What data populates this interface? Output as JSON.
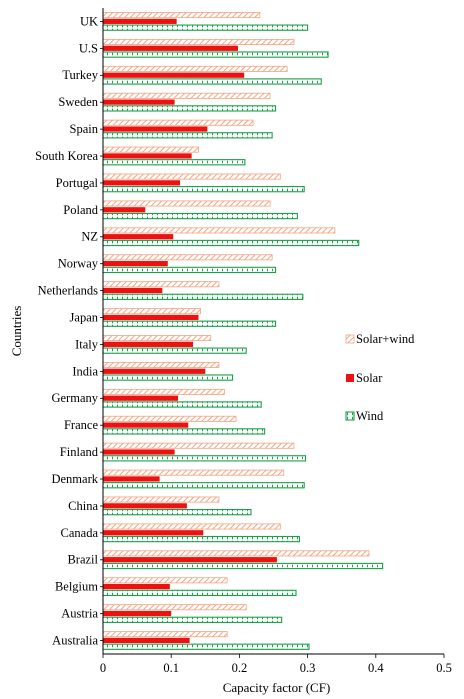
{
  "chart_data": {
    "type": "bar",
    "orientation": "horizontal",
    "xlabel": "Capacity factor (CF)",
    "ylabel": "Countries",
    "xlim": [
      0,
      0.5
    ],
    "xticks": [
      "0",
      "0.1",
      "0.2",
      "0.3",
      "0.4",
      "0.5"
    ],
    "grid": false,
    "legend_placement": "right",
    "categories": [
      "UK",
      "U.S",
      "Turkey",
      "Sweden",
      "Spain",
      "South Korea",
      "Portugal",
      "Poland",
      "NZ",
      "Norway",
      "Netherlands",
      "Japan",
      "Italy",
      "India",
      "Germany",
      "France",
      "Finland",
      "Denmark",
      "China",
      "Canada",
      "Brazil",
      "Belgium",
      "Austria",
      "Australia"
    ],
    "series": [
      {
        "name": "Solar+wind",
        "color": "#f4a582",
        "pattern": "diagonal-hatch",
        "values": [
          0.23,
          0.28,
          0.27,
          0.245,
          0.22,
          0.14,
          0.26,
          0.245,
          0.34,
          0.248,
          0.17,
          0.143,
          0.158,
          0.17,
          0.178,
          0.195,
          0.28,
          0.265,
          0.17,
          0.26,
          0.39,
          0.182,
          0.21,
          0.182
        ]
      },
      {
        "name": "Solar",
        "color": "#ee1111",
        "pattern": "solid",
        "values": [
          0.108,
          0.198,
          0.207,
          0.105,
          0.153,
          0.13,
          0.113,
          0.062,
          0.103,
          0.095,
          0.087,
          0.14,
          0.132,
          0.15,
          0.11,
          0.125,
          0.105,
          0.083,
          0.123,
          0.147,
          0.255,
          0.098,
          0.1,
          0.127
        ]
      },
      {
        "name": "Wind",
        "color": "#1aa048",
        "pattern": "dotted-outline",
        "values": [
          0.3,
          0.33,
          0.32,
          0.253,
          0.248,
          0.208,
          0.295,
          0.285,
          0.375,
          0.253,
          0.293,
          0.253,
          0.21,
          0.19,
          0.232,
          0.237,
          0.297,
          0.295,
          0.217,
          0.288,
          0.41,
          0.283,
          0.262,
          0.302
        ]
      }
    ]
  }
}
